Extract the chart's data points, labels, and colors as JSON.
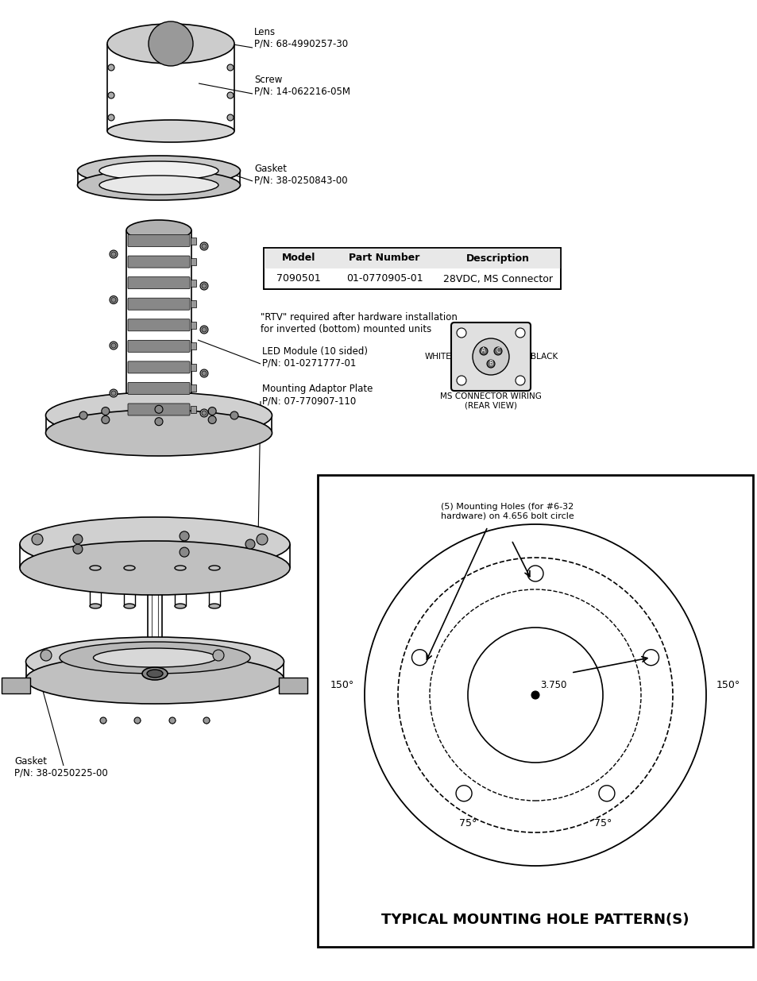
{
  "title": "TYPICAL MOUNTING HOLE PATTERN(S)",
  "bg_color": "#ffffff",
  "line_color": "#000000",
  "table_headers": [
    "Model",
    "Part Number",
    "Description"
  ],
  "table_row": [
    "7090501",
    "01-0770905-01",
    "28VDC, MS Connector"
  ],
  "labels": {
    "lens": "Lens\nP/N: 68-4990257-30",
    "screw": "Screw\nP/N: 14-062216-05M",
    "gasket_top": "Gasket\nP/N: 38-0250843-00",
    "led_module": "LED Module (10 sided)\nP/N: 01-0271777-01",
    "mounting_adaptor": "Mounting Adaptor Plate\nP/N: 07-770907-110",
    "gasket_bot": "Gasket\nP/N: 38-0250225-00",
    "rtv_note": "\"RTV\" required after hardware installation\nfor inverted (bottom) mounted units",
    "ms_connector_label": "MS CONNECTOR WIRING\n(REAR VIEW)",
    "white_label": "WHITE",
    "black_label": "BLACK",
    "mounting_note": "(5) Mounting Holes (for #6-32\nhardware) on 4.656 bolt circle",
    "dim_label": "3.750",
    "angle_150_left": "150°",
    "angle_150_right": "150°",
    "angle_75_left": "75°",
    "angle_75_right": "75°"
  }
}
